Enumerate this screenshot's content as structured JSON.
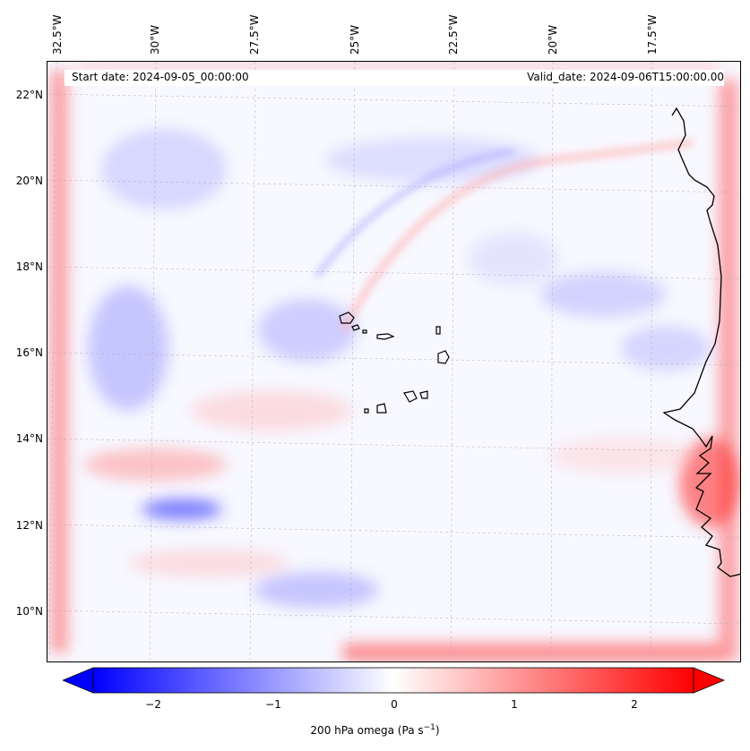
{
  "map": {
    "start_date": "Start date: 2024-09-05_00:00:00",
    "valid_date": "Valid_date: 2024-09-06T15:00:00.00",
    "lon_labels": [
      "32.5°W",
      "30°W",
      "27.5°W",
      "25°W",
      "22.5°W",
      "20°W",
      "17.5°W"
    ],
    "lat_labels": [
      "22°N",
      "20°N",
      "18°N",
      "16°N",
      "14°N",
      "12°N",
      "10°N"
    ],
    "colors": {
      "negative": "#0000ff",
      "neutral": "#ffffff",
      "positive": "#ff0000",
      "background": "#f8f8ff",
      "coastline": "#000000"
    }
  },
  "colorbar": {
    "ticks": [
      "−2",
      "−1",
      "0",
      "1",
      "2"
    ],
    "min": -2.6,
    "max": 2.6,
    "label_main": "200 hPa omega (Pa s",
    "label_sup": "−1",
    "label_end": ")"
  }
}
